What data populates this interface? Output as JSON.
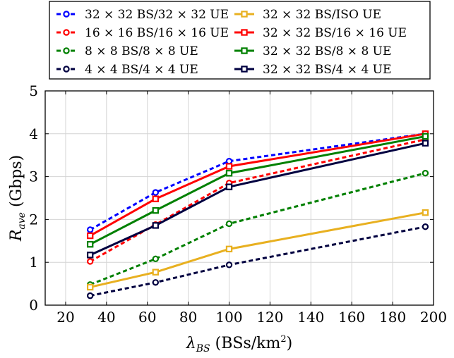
{
  "chart_data": {
    "type": "line",
    "title": "",
    "xlabel": {
      "symbol": "λ",
      "sub": "BS",
      "text": " (BSs/km",
      "sup": "2",
      "tail": ")"
    },
    "ylabel": {
      "symbol": "R",
      "sub": "ave",
      "text": " (Gbps)"
    },
    "xlim": [
      10,
      200
    ],
    "ylim": [
      0,
      5
    ],
    "xticks": [
      20,
      40,
      60,
      80,
      100,
      120,
      140,
      160,
      180,
      200
    ],
    "yticks": [
      0,
      1,
      2,
      3,
      4,
      5
    ],
    "grid": true,
    "legend_position": "top",
    "series": [
      {
        "name": "32 × 32 BS/32 × 32 UE",
        "color": "#0000ff",
        "dash": true,
        "marker": "circle",
        "x": [
          32,
          64,
          100,
          196
        ],
        "y": [
          1.76,
          2.63,
          3.36,
          4.0
        ]
      },
      {
        "name": "16 × 16 BS/16 × 16 UE",
        "color": "#ff0000",
        "dash": true,
        "marker": "circle",
        "x": [
          32,
          64,
          100,
          196
        ],
        "y": [
          1.02,
          1.88,
          2.85,
          3.87
        ]
      },
      {
        "name": "8 × 8 BS/8 × 8 UE",
        "color": "#008000",
        "dash": true,
        "marker": "circle",
        "x": [
          32,
          64,
          100,
          196
        ],
        "y": [
          0.48,
          1.08,
          1.9,
          3.08
        ]
      },
      {
        "name": "4 × 4 BS/4 × 4 UE",
        "color": "#000040",
        "dash": true,
        "marker": "circle",
        "x": [
          32,
          64,
          100,
          196
        ],
        "y": [
          0.22,
          0.53,
          0.94,
          1.83
        ]
      },
      {
        "name": "32 × 32 BS/ISO UE",
        "color": "#e8b020",
        "dash": false,
        "marker": "square",
        "x": [
          32,
          64,
          100,
          196
        ],
        "y": [
          0.42,
          0.77,
          1.31,
          2.16
        ]
      },
      {
        "name": "32 × 32 BS/16 × 16 UE",
        "color": "#ff0000",
        "dash": false,
        "marker": "square",
        "x": [
          32,
          64,
          100,
          196
        ],
        "y": [
          1.62,
          2.48,
          3.24,
          4.0
        ]
      },
      {
        "name": "32 × 32 BS/8 × 8 UE",
        "color": "#008000",
        "dash": false,
        "marker": "square",
        "x": [
          32,
          64,
          100,
          196
        ],
        "y": [
          1.42,
          2.21,
          3.08,
          3.94
        ]
      },
      {
        "name": "32 × 32 BS/4 × 4 UE",
        "color": "#000040",
        "dash": false,
        "marker": "square",
        "x": [
          32,
          64,
          100,
          196
        ],
        "y": [
          1.17,
          1.86,
          2.76,
          3.78
        ]
      }
    ]
  }
}
